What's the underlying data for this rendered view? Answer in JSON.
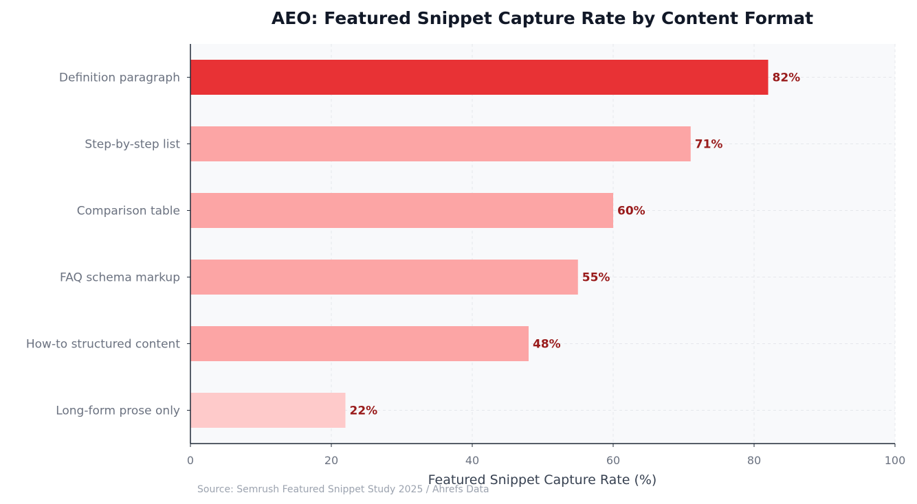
{
  "chart_data": {
    "type": "bar",
    "orientation": "horizontal",
    "title": "AEO: Featured Snippet Capture Rate by Content Format",
    "xlabel": "Featured Snippet Capture Rate (%)",
    "ylabel": "",
    "xlim": [
      0,
      100
    ],
    "xticks": [
      0,
      20,
      40,
      60,
      80,
      100
    ],
    "grid": true,
    "categories": [
      "Definition paragraph",
      "Step-by-step list",
      "Comparison table",
      "FAQ schema markup",
      "How-to structured content",
      "Long-form prose only"
    ],
    "values": [
      82,
      71,
      60,
      55,
      48,
      22
    ],
    "value_labels": [
      "82%",
      "71%",
      "60%",
      "55%",
      "48%",
      "22%"
    ],
    "bar_colors": [
      "#e83235",
      "#fca5a5",
      "#fca5a5",
      "#fca5a5",
      "#fca5a5",
      "#fecaca"
    ],
    "source_note": "Source: Semrush Featured Snippet Study 2025 / Ahrefs Data"
  },
  "colors": {
    "plot_background": "#f8f9fb",
    "grid": "#e5e7eb",
    "axis": "#1f2937",
    "value_label": "#991b1b"
  }
}
